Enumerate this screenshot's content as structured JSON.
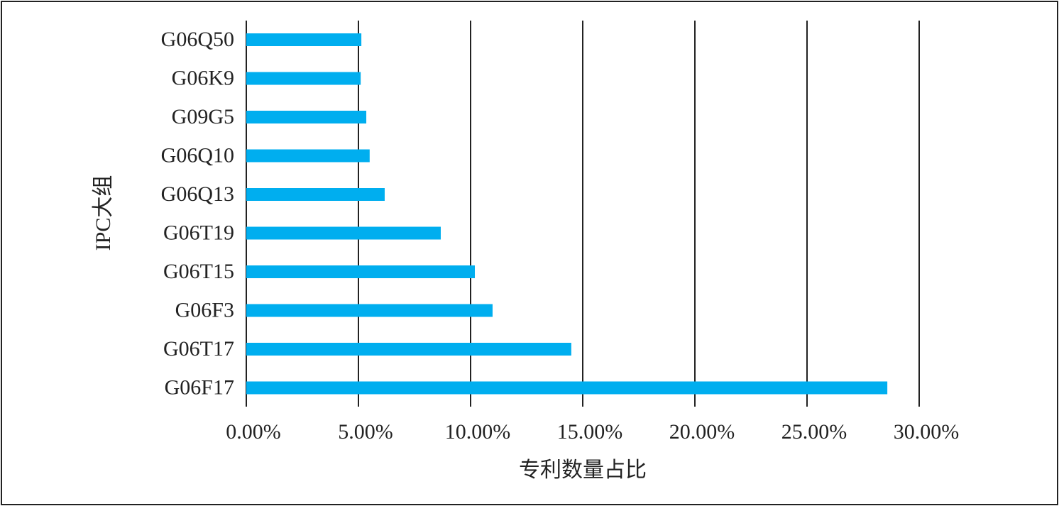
{
  "chart_data": {
    "type": "barh",
    "categories": [
      "G06Q50",
      "G06K9",
      "G09G5",
      "G06Q10",
      "G06Q13",
      "G06T19",
      "G06T15",
      "G06F3",
      "G06T17",
      "G06F17"
    ],
    "values": [
      5.13,
      5.1,
      5.35,
      5.5,
      6.17,
      8.67,
      10.19,
      10.98,
      14.49,
      28.58
    ],
    "color": "#00aeef",
    "x_label": "专利数量占比",
    "y_label": "IPC大组",
    "xlim": [
      0,
      30
    ],
    "xticks": [
      {
        "value": 0,
        "label": "0.00%"
      },
      {
        "value": 5,
        "label": "5.00%"
      },
      {
        "value": 10,
        "label": "10.00%"
      },
      {
        "value": 15,
        "label": "15.00%"
      },
      {
        "value": 20,
        "label": "20.00%"
      },
      {
        "value": 25,
        "label": "25.00%"
      },
      {
        "value": 30,
        "label": "30.00%"
      }
    ],
    "grid": true
  }
}
